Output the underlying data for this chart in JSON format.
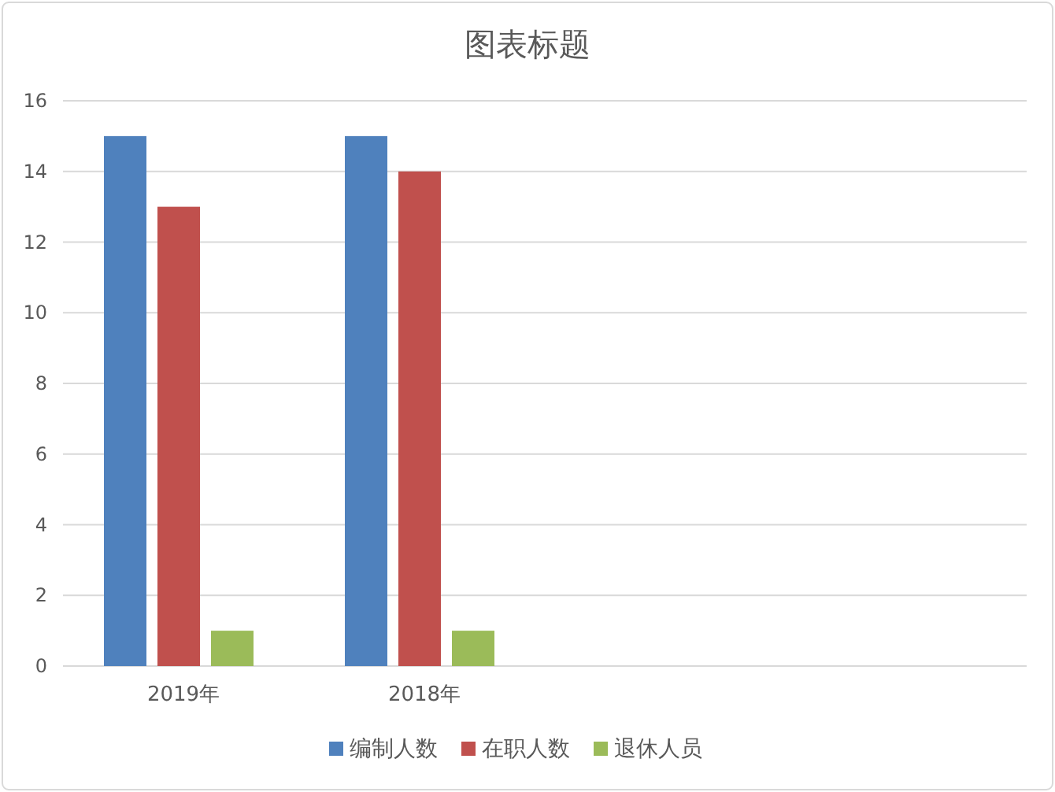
{
  "chart_data": {
    "type": "bar",
    "title": "图表标题",
    "categories": [
      "2019年",
      "2018年",
      null,
      null
    ],
    "series": [
      {
        "name": "编制人数",
        "color": "#4f81bd",
        "values": [
          15,
          15,
          null,
          null
        ]
      },
      {
        "name": "在职人数",
        "color": "#c0504d",
        "values": [
          13,
          14,
          null,
          null
        ]
      },
      {
        "name": "退休人员",
        "color": "#9bbb59",
        "values": [
          1,
          1,
          null,
          null
        ]
      }
    ],
    "ylim": [
      0,
      16
    ],
    "yticks": [
      0,
      2,
      4,
      6,
      8,
      10,
      12,
      14,
      16
    ],
    "grid": "y",
    "legend": "bottom"
  }
}
